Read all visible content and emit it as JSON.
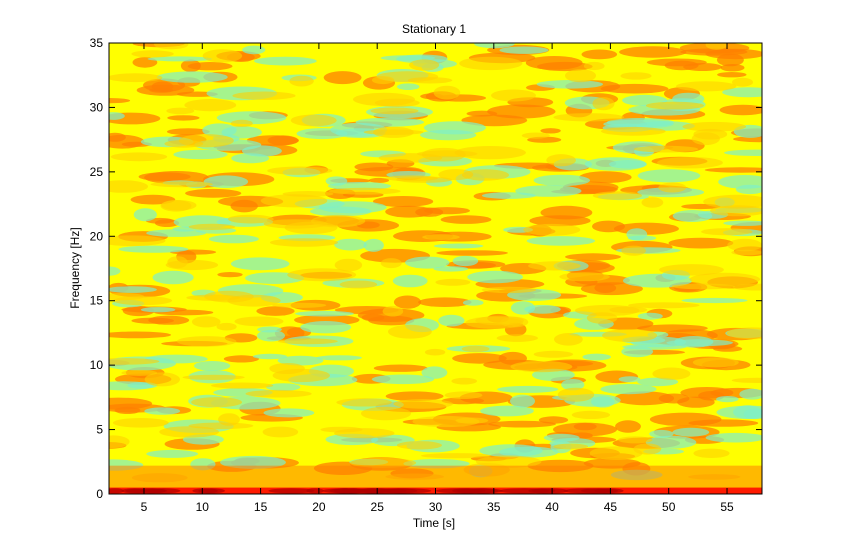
{
  "chart_data": {
    "type": "heatmap",
    "title": "Stationary 1",
    "xlabel": "Time [s]",
    "ylabel": "Frequency [Hz]",
    "xlim": [
      2,
      58
    ],
    "ylim": [
      0,
      35
    ],
    "x_ticks": [
      5,
      10,
      15,
      20,
      25,
      30,
      35,
      40,
      45,
      50,
      55
    ],
    "y_ticks": [
      0,
      5,
      10,
      15,
      20,
      25,
      30,
      35
    ],
    "colormap": "jet",
    "colors": {
      "low": "#7ff0c8",
      "mid": "#ffff00",
      "high": "#ff8000",
      "peak": "#e60000",
      "dc_band": "#ff1a00"
    }
  }
}
